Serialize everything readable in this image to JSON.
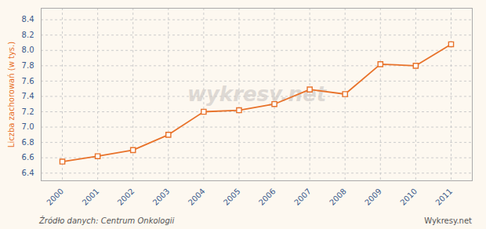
{
  "chart_data": {
    "type": "line",
    "x": [
      2000,
      2001,
      2002,
      2003,
      2004,
      2005,
      2006,
      2007,
      2008,
      2009,
      2010,
      2011
    ],
    "values": [
      6.55,
      6.62,
      6.7,
      6.9,
      7.2,
      7.22,
      7.3,
      7.49,
      7.43,
      7.82,
      7.8,
      8.08
    ],
    "color": "#e8722a",
    "marker": "square",
    "ylabel": "Liczba zachorowań (w tys.)",
    "watermark": "wykresy.net",
    "source": "Źródło danych:  Centrum Onkologii",
    "brand": "Wykresy.net",
    "xlim": [
      1999.4,
      2011.6
    ],
    "xticks": [
      2000,
      2001,
      2002,
      2003,
      2004,
      2005,
      2006,
      2007,
      2008,
      2009,
      2010,
      2011
    ],
    "ylim": [
      6.3,
      8.55
    ],
    "yticks": [
      6.4,
      6.6,
      6.8,
      {
        "value": 7.0,
        "label": "7.0"
      },
      7.2,
      7.4,
      7.6,
      7.8,
      {
        "value": 8.0,
        "label": "8.0"
      },
      8.2,
      8.4
    ],
    "grid": true
  }
}
